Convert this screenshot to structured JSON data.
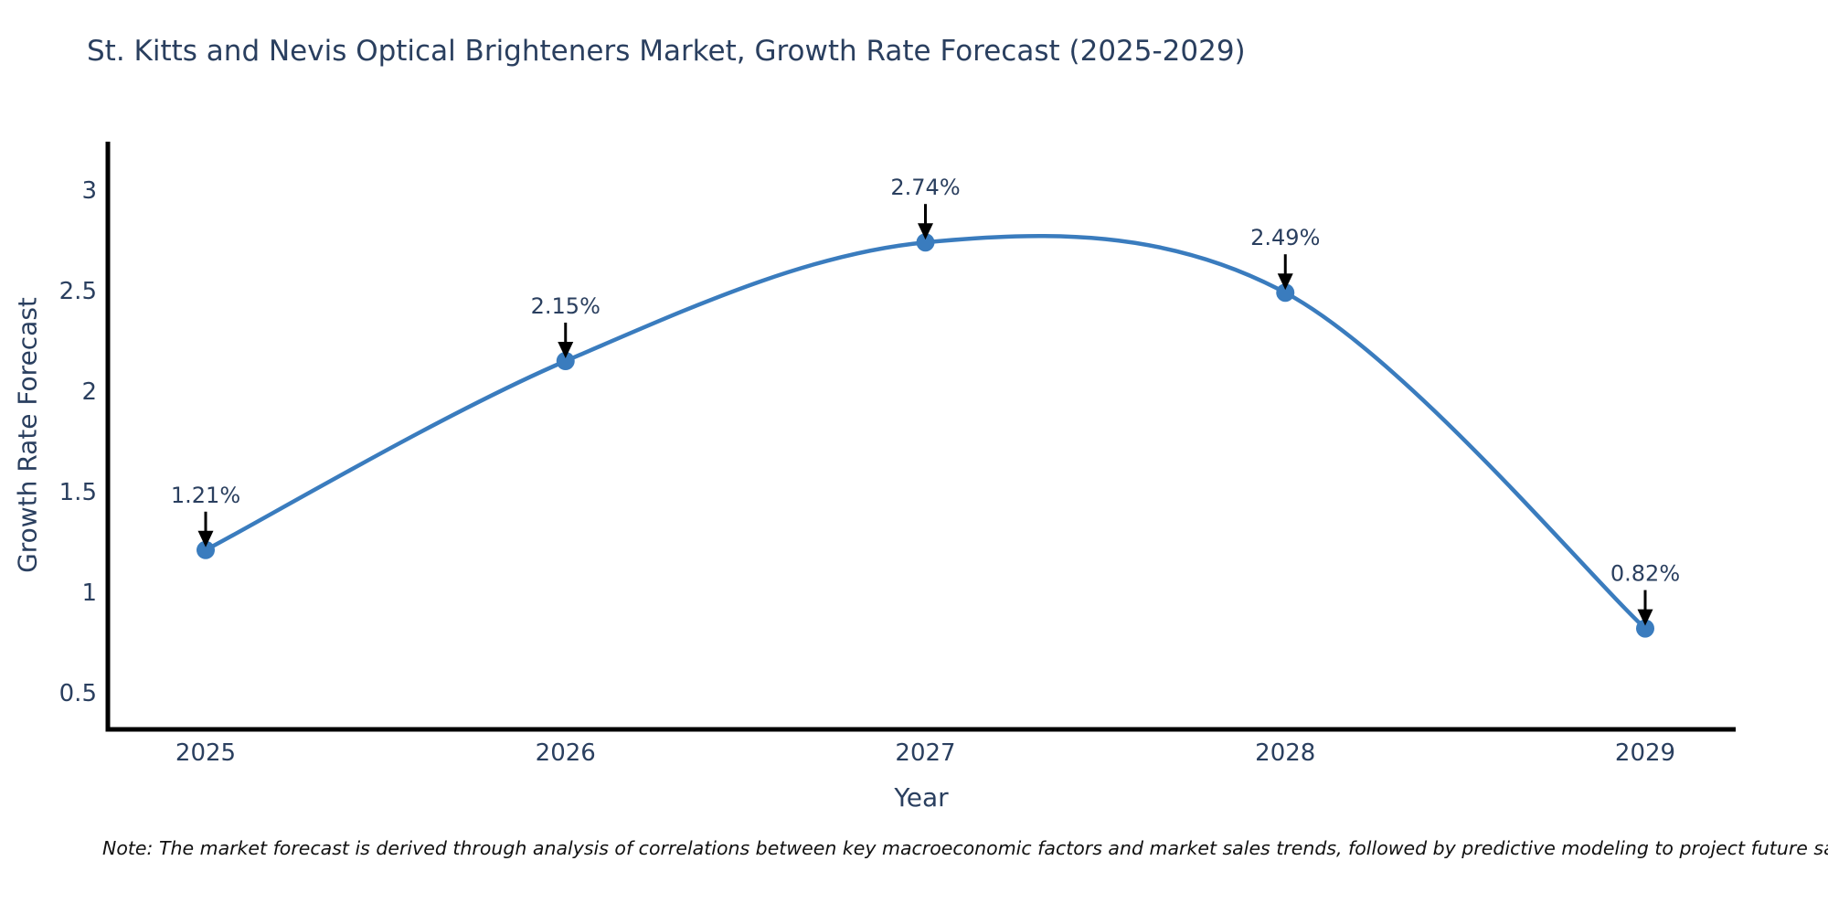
{
  "note": "Note: The market forecast is derived through analysis of correlations between key macroeconomic factors and market sales trends, followed by predictive modeling to project future sales.",
  "chart_data": {
    "type": "line",
    "title": "St. Kitts and Nevis Optical Brighteners Market, Growth Rate Forecast (2025-2029)",
    "xlabel": "Year",
    "ylabel": "Growth Rate Forecast",
    "x": [
      2025,
      2026,
      2027,
      2028,
      2029
    ],
    "series": [
      {
        "name": "Growth Rate Forecast",
        "values": [
          1.21,
          2.15,
          2.74,
          2.49,
          0.82
        ]
      }
    ],
    "point_labels": [
      "1.21%",
      "2.15%",
      "2.74%",
      "2.49%",
      "0.82%"
    ],
    "x_tick_labels": [
      "2025",
      "2026",
      "2027",
      "2028",
      "2029"
    ],
    "y_ticks": [
      0.5,
      1,
      1.5,
      2,
      2.5,
      3
    ],
    "ylim": [
      0.31,
      3.24
    ],
    "line_shape": "spline",
    "grid": false,
    "legend_position": "none",
    "colors": {
      "line": "#3a7cbe",
      "marker": "#3a7cbe",
      "arrow": "#000000",
      "axis": "#000000",
      "tick_text": "#2a3f5f",
      "title_text": "#2a3f5f"
    }
  }
}
